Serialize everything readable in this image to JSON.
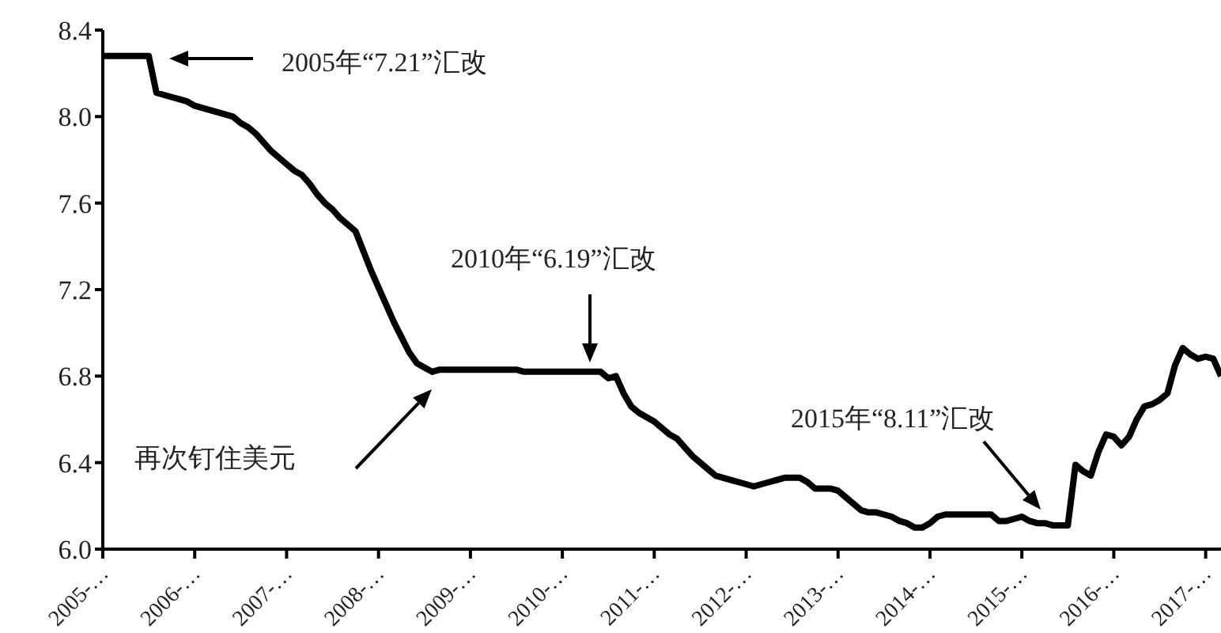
{
  "chart_data": {
    "type": "line",
    "categories": [
      "2005-…",
      null,
      null,
      null,
      null,
      null,
      null,
      null,
      null,
      null,
      null,
      null,
      "2006-…",
      null,
      null,
      null,
      null,
      null,
      null,
      null,
      null,
      null,
      null,
      null,
      "2007-…",
      null,
      null,
      null,
      null,
      null,
      null,
      null,
      null,
      null,
      null,
      null,
      "2008-…",
      null,
      null,
      null,
      null,
      null,
      null,
      null,
      null,
      null,
      null,
      null,
      "2009-…",
      null,
      null,
      null,
      null,
      null,
      null,
      null,
      null,
      null,
      null,
      null,
      "2010-…",
      null,
      null,
      null,
      null,
      null,
      null,
      null,
      null,
      null,
      null,
      null,
      "2011-…",
      null,
      null,
      null,
      null,
      null,
      null,
      null,
      null,
      null,
      null,
      null,
      "2012-…",
      null,
      null,
      null,
      null,
      null,
      null,
      null,
      null,
      null,
      null,
      null,
      "2013-…",
      null,
      null,
      null,
      null,
      null,
      null,
      null,
      null,
      null,
      null,
      null,
      "2014-…",
      null,
      null,
      null,
      null,
      null,
      null,
      null,
      null,
      null,
      null,
      null,
      "2015-…",
      null,
      null,
      null,
      null,
      null,
      null,
      null,
      null,
      null,
      null,
      null,
      "2016-…",
      null,
      null,
      null,
      null,
      null,
      null,
      null,
      null,
      null,
      null,
      null,
      "2017-…",
      null,
      null
    ],
    "series": [
      {
        "color": "#000000",
        "values": [
          8.28,
          8.28,
          8.28,
          8.28,
          8.28,
          8.28,
          8.28,
          8.11,
          8.1,
          8.09,
          8.08,
          8.07,
          8.05,
          8.04,
          8.03,
          8.02,
          8.01,
          8.0,
          7.97,
          7.95,
          7.92,
          7.88,
          7.84,
          7.81,
          7.78,
          7.75,
          7.73,
          7.69,
          7.64,
          7.6,
          7.57,
          7.53,
          7.5,
          7.47,
          7.38,
          7.29,
          7.21,
          7.13,
          7.05,
          6.98,
          6.91,
          6.86,
          6.84,
          6.82,
          6.83,
          6.83,
          6.83,
          6.83,
          6.83,
          6.83,
          6.83,
          6.83,
          6.83,
          6.83,
          6.83,
          6.82,
          6.82,
          6.82,
          6.82,
          6.82,
          6.82,
          6.82,
          6.82,
          6.82,
          6.82,
          6.82,
          6.79,
          6.8,
          6.72,
          6.66,
          6.63,
          6.61,
          6.59,
          6.56,
          6.53,
          6.51,
          6.47,
          6.43,
          6.4,
          6.37,
          6.34,
          6.33,
          6.32,
          6.31,
          6.3,
          6.29,
          6.3,
          6.31,
          6.32,
          6.33,
          6.33,
          6.33,
          6.31,
          6.28,
          6.28,
          6.28,
          6.27,
          6.24,
          6.21,
          6.18,
          6.17,
          6.17,
          6.16,
          6.15,
          6.13,
          6.12,
          6.1,
          6.1,
          6.12,
          6.15,
          6.16,
          6.16,
          6.16,
          6.16,
          6.16,
          6.16,
          6.16,
          6.13,
          6.13,
          6.14,
          6.15,
          6.13,
          6.12,
          6.12,
          6.11,
          6.11,
          6.11,
          6.39,
          6.36,
          6.34,
          6.45,
          6.53,
          6.52,
          6.48,
          6.52,
          6.6,
          6.66,
          6.67,
          6.69,
          6.72,
          6.85,
          6.93,
          6.9,
          6.88,
          6.89,
          6.88,
          6.8
        ]
      }
    ],
    "ylim": [
      6.0,
      8.4
    ],
    "yticks": [
      {
        "value": 6.0,
        "label": "6.0"
      },
      {
        "value": 6.4,
        "label": "6.4"
      },
      {
        "value": 6.8,
        "label": "6.8"
      },
      {
        "value": 7.2,
        "label": "7.2"
      },
      {
        "value": 7.6,
        "label": "7.6"
      },
      {
        "value": 8.0,
        "label": "8.0"
      },
      {
        "value": 8.4,
        "label": "8.4"
      }
    ],
    "grid": false,
    "legend": false,
    "marker": "none",
    "line_style": "solid",
    "annotations": [
      "2005年“7.21”汇改",
      "2010年“6.19”汇改",
      "再次钉住美元",
      "2015年“8.11”汇改"
    ]
  }
}
